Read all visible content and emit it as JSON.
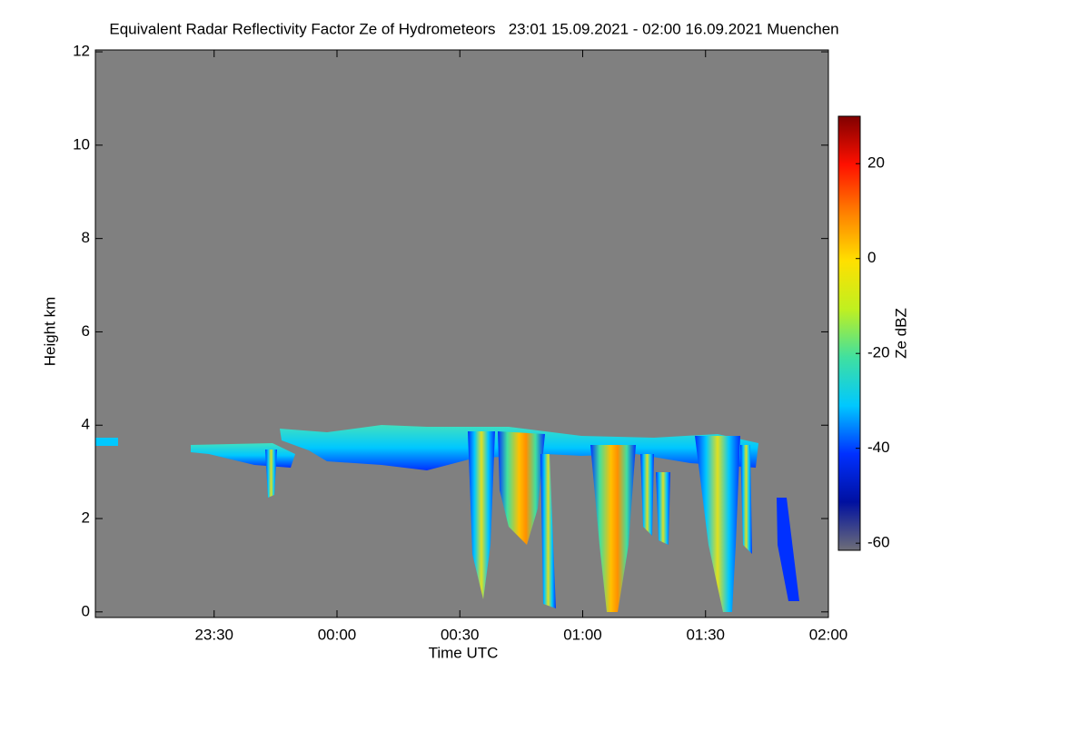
{
  "chart_data": {
    "type": "heatmap",
    "title": "Equivalent Radar Reflectivity Factor Ze of Hydrometeors   23:01 15.09.2021 - 02:00 16.09.2021 Muenchen",
    "x_label": "Time UTC",
    "y_label": "Height km",
    "xlim": [
      -59,
      120
    ],
    "xticks": [
      {
        "value": -30,
        "label": "23:30"
      },
      {
        "value": 0,
        "label": "00:00"
      },
      {
        "value": 30,
        "label": "00:30"
      },
      {
        "value": 60,
        "label": "01:00"
      },
      {
        "value": 90,
        "label": "01:30"
      },
      {
        "value": 120,
        "label": "02:00"
      }
    ],
    "ylim": [
      -0.12,
      12.04
    ],
    "yticks": [
      0,
      2,
      4,
      6,
      8,
      10,
      12
    ],
    "colorbar": {
      "label": "Ze dBZ",
      "lim": [
        -61.5,
        30
      ],
      "ticks": [
        20,
        0,
        -20,
        -40,
        -60
      ],
      "colormap": [
        "#6e6e78",
        "#0010a0",
        "#0030ff",
        "#00c8ff",
        "#40e0a0",
        "#c0f020",
        "#ffe000",
        "#ff8000",
        "#ff1000",
        "#800000"
      ]
    },
    "background": "#808080"
  }
}
